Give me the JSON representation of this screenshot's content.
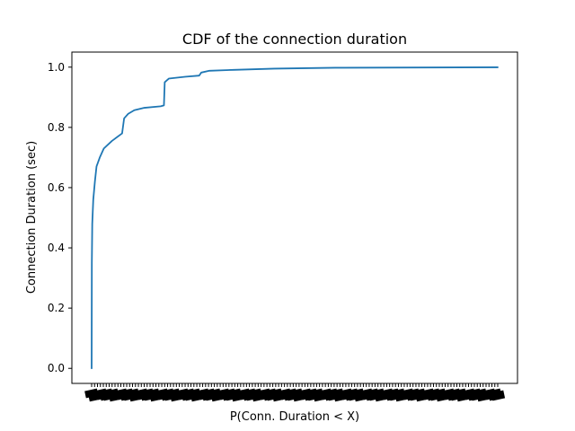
{
  "chart_data": {
    "type": "line",
    "title": "CDF of the connection duration",
    "xlabel": "P(Conn. Duration < X)",
    "ylabel": "Connection Duration (sec)",
    "ylim": [
      -0.05,
      1.05
    ],
    "yticks": [
      0.0,
      0.2,
      0.4,
      0.6,
      0.8,
      1.0
    ],
    "ytick_labels": [
      "0.0",
      "0.2",
      "0.4",
      "0.6",
      "0.8",
      "1.0"
    ],
    "xticks_note": "x tick labels are densely overlapped and illegible",
    "grid": false,
    "series": [
      {
        "color": "#1f77b4",
        "points": [
          [
            0,
            0.0
          ],
          [
            0.05,
            0.35
          ],
          [
            0.15,
            0.48
          ],
          [
            0.4,
            0.56
          ],
          [
            0.8,
            0.62
          ],
          [
            1.2,
            0.67
          ],
          [
            2,
            0.7
          ],
          [
            3,
            0.73
          ],
          [
            5,
            0.755
          ],
          [
            7.5,
            0.78
          ],
          [
            8,
            0.83
          ],
          [
            9,
            0.845
          ],
          [
            10.5,
            0.857
          ],
          [
            13,
            0.865
          ],
          [
            17,
            0.87
          ],
          [
            17.8,
            0.873
          ],
          [
            18,
            0.95
          ],
          [
            19,
            0.962
          ],
          [
            23,
            0.968
          ],
          [
            26.5,
            0.972
          ],
          [
            27,
            0.982
          ],
          [
            29,
            0.988
          ],
          [
            35,
            0.991
          ],
          [
            45,
            0.995
          ],
          [
            60,
            0.998
          ],
          [
            100,
            0.9995
          ]
        ]
      }
    ]
  }
}
